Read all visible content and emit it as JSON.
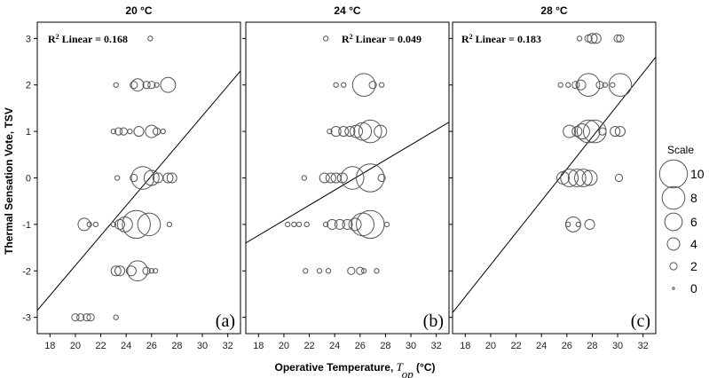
{
  "chart_data": [
    {
      "type": "scatter",
      "title": "20 °C",
      "panel_label": "(a)",
      "r2_prefix": "R",
      "r2_sup": "2",
      "r2_text": " Linear = 0.168",
      "xlim": [
        17,
        33
      ],
      "ylim": [
        -3.35,
        3.35
      ],
      "fit": {
        "x": [
          17,
          33
        ],
        "y": [
          -2.85,
          2.3
        ]
      },
      "points": [
        {
          "x": 25.9,
          "y": 3,
          "s": 1
        },
        {
          "x": 23.2,
          "y": 2,
          "s": 1
        },
        {
          "x": 24.6,
          "y": 2,
          "s": 2
        },
        {
          "x": 24.9,
          "y": 2,
          "s": 4
        },
        {
          "x": 25.6,
          "y": 2,
          "s": 2
        },
        {
          "x": 26.0,
          "y": 2,
          "s": 2
        },
        {
          "x": 26.4,
          "y": 2,
          "s": 1
        },
        {
          "x": 27.3,
          "y": 2,
          "s": 5
        },
        {
          "x": 23.0,
          "y": 1,
          "s": 1
        },
        {
          "x": 23.4,
          "y": 1,
          "s": 2
        },
        {
          "x": 23.8,
          "y": 1,
          "s": 2
        },
        {
          "x": 24.3,
          "y": 1,
          "s": 1
        },
        {
          "x": 25.0,
          "y": 1,
          "s": 3
        },
        {
          "x": 26.0,
          "y": 1,
          "s": 4
        },
        {
          "x": 26.4,
          "y": 1,
          "s": 2
        },
        {
          "x": 26.9,
          "y": 1,
          "s": 1
        },
        {
          "x": 23.3,
          "y": 0,
          "s": 1
        },
        {
          "x": 24.6,
          "y": 0,
          "s": 2
        },
        {
          "x": 25.3,
          "y": 0,
          "s": 8
        },
        {
          "x": 26.0,
          "y": 0,
          "s": 5
        },
        {
          "x": 26.5,
          "y": 0,
          "s": 3
        },
        {
          "x": 27.3,
          "y": 0,
          "s": 3
        },
        {
          "x": 27.6,
          "y": 0,
          "s": 3
        },
        {
          "x": 20.7,
          "y": -1,
          "s": 4
        },
        {
          "x": 21.1,
          "y": -1,
          "s": 1
        },
        {
          "x": 21.6,
          "y": -1,
          "s": 1
        },
        {
          "x": 23.0,
          "y": -1,
          "s": 1
        },
        {
          "x": 23.5,
          "y": -1,
          "s": 3
        },
        {
          "x": 23.9,
          "y": -1,
          "s": 5
        },
        {
          "x": 24.8,
          "y": -1,
          "s": 10
        },
        {
          "x": 25.8,
          "y": -1,
          "s": 8
        },
        {
          "x": 27.4,
          "y": -1,
          "s": 1
        },
        {
          "x": 23.2,
          "y": -2,
          "s": 3
        },
        {
          "x": 23.5,
          "y": -2,
          "s": 3
        },
        {
          "x": 24.4,
          "y": -2,
          "s": 3
        },
        {
          "x": 24.9,
          "y": -2,
          "s": 7
        },
        {
          "x": 25.6,
          "y": -2,
          "s": 2
        },
        {
          "x": 26.0,
          "y": -2,
          "s": 1
        },
        {
          "x": 26.3,
          "y": -2,
          "s": 1
        },
        {
          "x": 20.0,
          "y": -3,
          "s": 2
        },
        {
          "x": 20.4,
          "y": -3,
          "s": 2
        },
        {
          "x": 20.9,
          "y": -3,
          "s": 2
        },
        {
          "x": 21.2,
          "y": -3,
          "s": 2
        },
        {
          "x": 23.2,
          "y": -3,
          "s": 1
        }
      ]
    },
    {
      "type": "scatter",
      "title": "24 °C",
      "panel_label": "(b)",
      "r2_prefix": "R",
      "r2_sup": "2",
      "r2_text": " Linear = 0.049",
      "xlim": [
        17,
        33
      ],
      "ylim": [
        -3.35,
        3.35
      ],
      "fit": {
        "x": [
          17,
          33
        ],
        "y": [
          -1.4,
          1.2
        ]
      },
      "points": [
        {
          "x": 23.3,
          "y": 3,
          "s": 1
        },
        {
          "x": 24.1,
          "y": 2,
          "s": 1
        },
        {
          "x": 24.7,
          "y": 2,
          "s": 1
        },
        {
          "x": 26.3,
          "y": 2,
          "s": 8
        },
        {
          "x": 27.0,
          "y": 2,
          "s": 2
        },
        {
          "x": 27.7,
          "y": 2,
          "s": 1
        },
        {
          "x": 23.6,
          "y": 1,
          "s": 1
        },
        {
          "x": 24.1,
          "y": 1,
          "s": 3
        },
        {
          "x": 24.7,
          "y": 1,
          "s": 3
        },
        {
          "x": 25.2,
          "y": 1,
          "s": 3
        },
        {
          "x": 25.7,
          "y": 1,
          "s": 4
        },
        {
          "x": 26.2,
          "y": 1,
          "s": 6
        },
        {
          "x": 26.8,
          "y": 1,
          "s": 8
        },
        {
          "x": 27.6,
          "y": 1,
          "s": 4
        },
        {
          "x": 21.6,
          "y": 0,
          "s": 1
        },
        {
          "x": 23.2,
          "y": 0,
          "s": 3
        },
        {
          "x": 23.7,
          "y": 0,
          "s": 3
        },
        {
          "x": 24.1,
          "y": 0,
          "s": 3
        },
        {
          "x": 24.6,
          "y": 0,
          "s": 3
        },
        {
          "x": 25.4,
          "y": 0,
          "s": 8
        },
        {
          "x": 26.8,
          "y": 0,
          "s": 10
        },
        {
          "x": 27.7,
          "y": 0,
          "s": 2
        },
        {
          "x": 20.3,
          "y": -1,
          "s": 1
        },
        {
          "x": 20.8,
          "y": -1,
          "s": 1
        },
        {
          "x": 21.2,
          "y": -1,
          "s": 1
        },
        {
          "x": 21.8,
          "y": -1,
          "s": 1
        },
        {
          "x": 23.3,
          "y": -1,
          "s": 1
        },
        {
          "x": 23.8,
          "y": -1,
          "s": 3
        },
        {
          "x": 24.4,
          "y": -1,
          "s": 3
        },
        {
          "x": 25.0,
          "y": -1,
          "s": 3
        },
        {
          "x": 25.6,
          "y": -1,
          "s": 4
        },
        {
          "x": 26.2,
          "y": -1,
          "s": 8
        },
        {
          "x": 26.8,
          "y": -1,
          "s": 10
        },
        {
          "x": 28.1,
          "y": -1,
          "s": 1
        },
        {
          "x": 21.7,
          "y": -2,
          "s": 1
        },
        {
          "x": 22.8,
          "y": -2,
          "s": 1
        },
        {
          "x": 23.5,
          "y": -2,
          "s": 1
        },
        {
          "x": 25.3,
          "y": -2,
          "s": 2
        },
        {
          "x": 26.0,
          "y": -2,
          "s": 2
        },
        {
          "x": 26.3,
          "y": -2,
          "s": 1
        },
        {
          "x": 27.3,
          "y": -2,
          "s": 1
        }
      ]
    },
    {
      "type": "scatter",
      "title": "28 °C",
      "panel_label": "(c)",
      "r2_prefix": "R",
      "r2_sup": "2",
      "r2_text": " Linear = 0.183",
      "xlim": [
        17,
        33
      ],
      "ylim": [
        -3.35,
        3.35
      ],
      "fit": {
        "x": [
          17,
          33
        ],
        "y": [
          -2.9,
          2.6
        ]
      },
      "points": [
        {
          "x": 27.0,
          "y": 3,
          "s": 1
        },
        {
          "x": 27.7,
          "y": 3,
          "s": 2
        },
        {
          "x": 28.0,
          "y": 3,
          "s": 3
        },
        {
          "x": 28.3,
          "y": 3,
          "s": 3
        },
        {
          "x": 30.0,
          "y": 3,
          "s": 2
        },
        {
          "x": 30.2,
          "y": 3,
          "s": 2
        },
        {
          "x": 25.5,
          "y": 2,
          "s": 1
        },
        {
          "x": 26.1,
          "y": 2,
          "s": 1
        },
        {
          "x": 26.7,
          "y": 2,
          "s": 2
        },
        {
          "x": 27.1,
          "y": 2,
          "s": 3
        },
        {
          "x": 27.7,
          "y": 2,
          "s": 8
        },
        {
          "x": 28.6,
          "y": 2,
          "s": 2
        },
        {
          "x": 29.0,
          "y": 2,
          "s": 1
        },
        {
          "x": 29.6,
          "y": 2,
          "s": 1
        },
        {
          "x": 30.2,
          "y": 2,
          "s": 8
        },
        {
          "x": 26.2,
          "y": 1,
          "s": 4
        },
        {
          "x": 26.8,
          "y": 1,
          "s": 3
        },
        {
          "x": 27.2,
          "y": 1,
          "s": 5
        },
        {
          "x": 27.7,
          "y": 1,
          "s": 8
        },
        {
          "x": 28.2,
          "y": 1,
          "s": 8
        },
        {
          "x": 28.8,
          "y": 1,
          "s": 2
        },
        {
          "x": 29.8,
          "y": 1,
          "s": 3
        },
        {
          "x": 30.2,
          "y": 1,
          "s": 3
        },
        {
          "x": 25.7,
          "y": 0,
          "s": 4
        },
        {
          "x": 26.2,
          "y": 0,
          "s": 6
        },
        {
          "x": 26.8,
          "y": 0,
          "s": 6
        },
        {
          "x": 27.3,
          "y": 0,
          "s": 6
        },
        {
          "x": 27.8,
          "y": 0,
          "s": 5
        },
        {
          "x": 30.1,
          "y": 0,
          "s": 2
        },
        {
          "x": 26.1,
          "y": -1,
          "s": 1
        },
        {
          "x": 26.5,
          "y": -1,
          "s": 5
        },
        {
          "x": 26.9,
          "y": -1,
          "s": 1
        },
        {
          "x": 27.8,
          "y": -1,
          "s": 3
        }
      ]
    }
  ],
  "shared": {
    "y_axis_label": "Thermal Sensation Vote, TSV",
    "x_axis_label_main": "Operative Temperature, ",
    "x_axis_var": "T",
    "x_axis_sub": "op",
    "x_axis_unit": " (°C)",
    "x_ticks": [
      18,
      20,
      22,
      24,
      26,
      28,
      30,
      32
    ],
    "y_ticks": [
      3,
      2,
      1,
      0,
      -1,
      -2,
      -3
    ]
  },
  "legend": {
    "title": "Scale",
    "entries": [
      10,
      8,
      6,
      4,
      2,
      0
    ]
  }
}
